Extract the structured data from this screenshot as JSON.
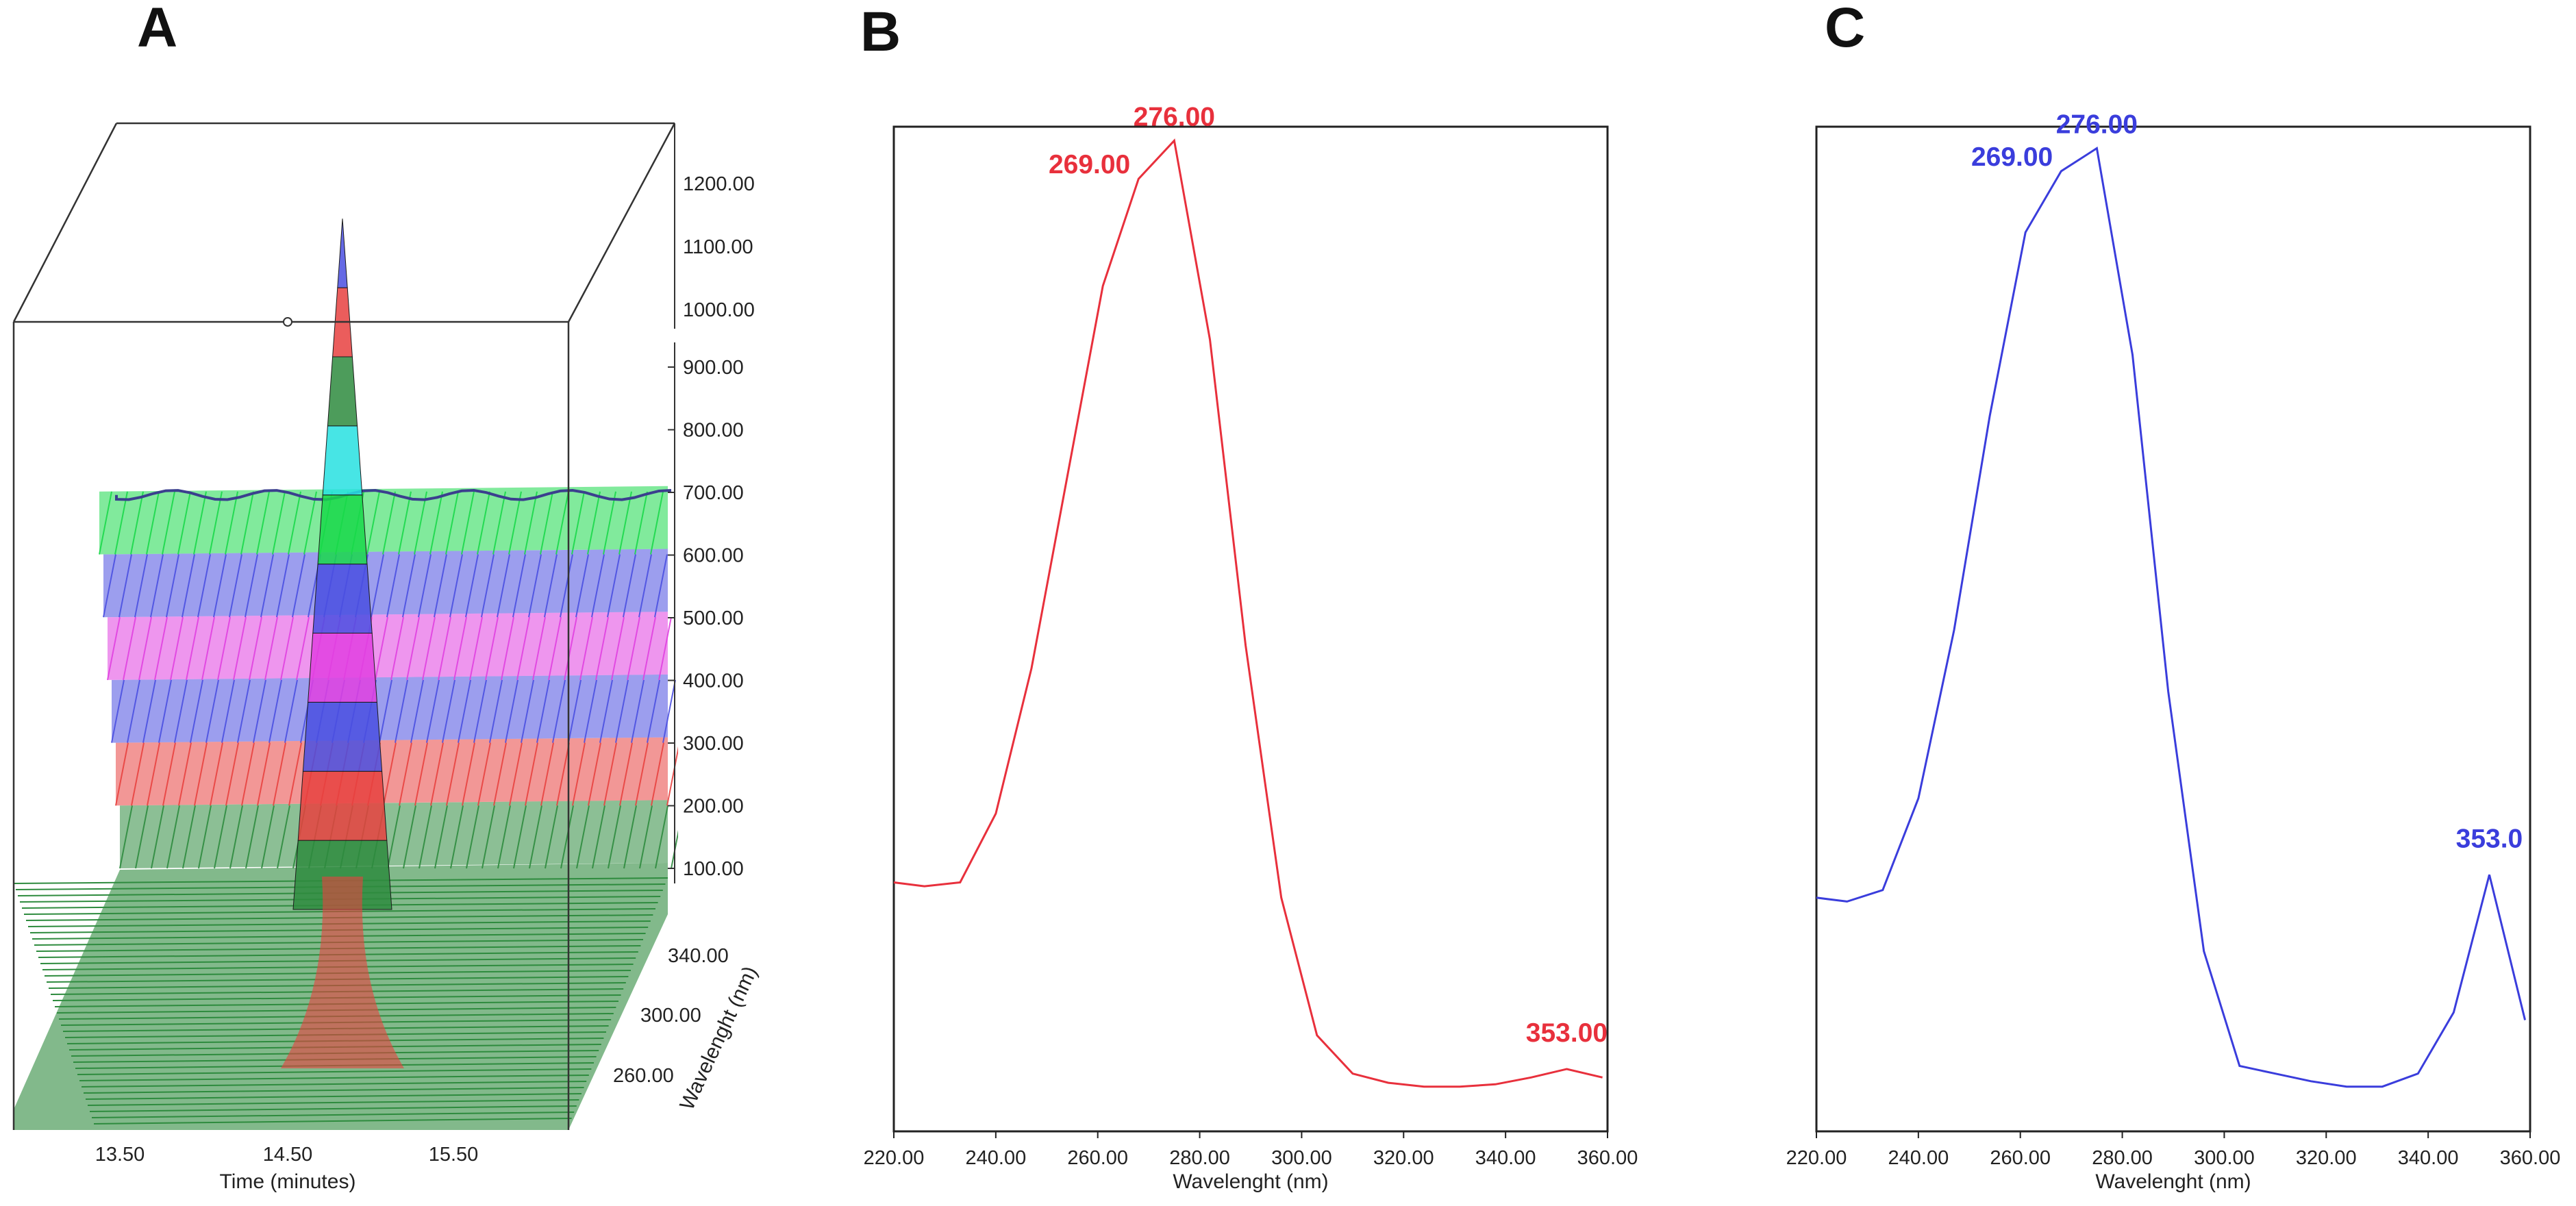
{
  "panels": {
    "a_letter": "A",
    "b_letter": "B",
    "c_letter": "C"
  },
  "chart_data": [
    {
      "type": "area",
      "panel": "A",
      "projection": "3d-isometric",
      "xlabel": "Time (minutes)",
      "x_ticks": [
        "13.50",
        "14.50",
        "15.50"
      ],
      "zlabel": "Wavelenght (nm)",
      "z_ticks": [
        "260.00",
        "300.00",
        "340.00"
      ],
      "y_ticks_upper": [
        "1000.00",
        "1100.00",
        "1200.00"
      ],
      "y_ticks_lower": [
        "100.00",
        "200.00",
        "300.00",
        "400.00",
        "500.00",
        "600.00",
        "700.00",
        "800.00",
        "900.00"
      ],
      "peak_time": 14.6,
      "peak_height": 1100,
      "band_colors": [
        "#2e8b3e",
        "#e8413f",
        "#4a4fe0",
        "#e040e0",
        "#4a4fe0",
        "#19d84a",
        "#27e0e0",
        "#2e8b3e",
        "#e8413f",
        "#4a4fe0"
      ],
      "band_step": 100,
      "plateau_level": 600
    },
    {
      "type": "line",
      "panel": "B",
      "color": "#e8303c",
      "xlabel": "Wavelenght (nm)",
      "xlim": [
        220,
        360
      ],
      "x_ticks": [
        "220.00",
        "240.00",
        "260.00",
        "280.00",
        "300.00",
        "320.00",
        "340.00",
        "360.00"
      ],
      "ylim": [
        0,
        1.2
      ],
      "x": [
        220,
        226,
        233,
        240,
        247,
        254,
        261,
        268,
        275,
        282,
        289,
        296,
        303,
        310,
        317,
        324,
        331,
        338,
        345,
        352,
        359
      ],
      "y": [
        0.27,
        0.265,
        0.27,
        0.36,
        0.55,
        0.8,
        1.05,
        1.19,
        1.24,
        0.98,
        0.58,
        0.25,
        0.07,
        0.02,
        0.008,
        0.003,
        0.003,
        0.006,
        0.015,
        0.026,
        0.015
      ],
      "annotations": [
        {
          "text": "269.00",
          "x": 268,
          "y": 1.19
        },
        {
          "text": "276.00",
          "x": 275,
          "y": 1.24
        },
        {
          "text": "353.00",
          "x": 352,
          "y": 0.026
        }
      ]
    },
    {
      "type": "line",
      "panel": "C",
      "color": "#3a3ddc",
      "xlabel": "Wavelenght (nm)",
      "xlim": [
        220,
        360
      ],
      "x_ticks": [
        "220.00",
        "240.00",
        "260.00",
        "280.00",
        "300.00",
        "320.00",
        "340.00",
        "360.00"
      ],
      "ylim": [
        0,
        1.2
      ],
      "x": [
        220,
        226,
        233,
        240,
        247,
        254,
        261,
        268,
        275,
        282,
        289,
        296,
        303,
        310,
        317,
        324,
        331,
        338,
        345,
        352,
        359
      ],
      "y": [
        0.25,
        0.245,
        0.26,
        0.38,
        0.6,
        0.88,
        1.12,
        1.2,
        1.23,
        0.96,
        0.52,
        0.18,
        0.03,
        0.02,
        0.01,
        0.003,
        0.003,
        0.02,
        0.1,
        0.28,
        0.09
      ],
      "annotations": [
        {
          "text": "269.00",
          "x": 268,
          "y": 1.2
        },
        {
          "text": "276.00",
          "x": 275,
          "y": 1.23
        },
        {
          "text": "353.0",
          "x": 352,
          "y": 0.28
        }
      ]
    }
  ]
}
